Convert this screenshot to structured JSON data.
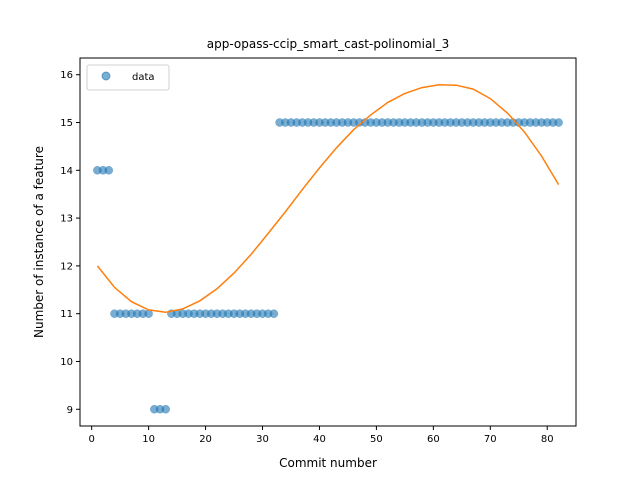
{
  "chart_data": {
    "type": "scatter",
    "title": "app-opass-ccip_smart_cast-polinomial_3",
    "xlabel": "Commit number",
    "ylabel": "Number of instance of a feature",
    "xlim": [
      -2.05,
      85.05
    ],
    "ylim": [
      8.65,
      16.35
    ],
    "xticks": [
      0,
      10,
      20,
      30,
      40,
      50,
      60,
      70,
      80
    ],
    "yticks": [
      9,
      10,
      11,
      12,
      13,
      14,
      15,
      16
    ],
    "grid": false,
    "legend": {
      "location": "upper left",
      "entries": [
        "data"
      ]
    },
    "series": [
      {
        "name": "data",
        "kind": "scatter",
        "color": "#1f77b4",
        "x": [
          1,
          2,
          3,
          4,
          5,
          6,
          7,
          8,
          9,
          10,
          11,
          12,
          13,
          14,
          15,
          16,
          17,
          18,
          19,
          20,
          21,
          22,
          23,
          24,
          25,
          26,
          27,
          28,
          29,
          30,
          31,
          32,
          33,
          34,
          35,
          36,
          37,
          38,
          39,
          40,
          41,
          42,
          43,
          44,
          45,
          46,
          47,
          48,
          49,
          50,
          51,
          52,
          53,
          54,
          55,
          56,
          57,
          58,
          59,
          60,
          61,
          62,
          63,
          64,
          65,
          66,
          67,
          68,
          69,
          70,
          71,
          72,
          73,
          74,
          75,
          76,
          77,
          78,
          79,
          80,
          81,
          82
        ],
        "y": [
          14,
          14,
          14,
          11,
          11,
          11,
          11,
          11,
          11,
          11,
          9,
          9,
          9,
          11,
          11,
          11,
          11,
          11,
          11,
          11,
          11,
          11,
          11,
          11,
          11,
          11,
          11,
          11,
          11,
          11,
          11,
          11,
          15,
          15,
          15,
          15,
          15,
          15,
          15,
          15,
          15,
          15,
          15,
          15,
          15,
          15,
          15,
          15,
          15,
          15,
          15,
          15,
          15,
          15,
          15,
          15,
          15,
          15,
          15,
          15,
          15,
          15,
          15,
          15,
          15,
          15,
          15,
          15,
          15,
          15,
          15,
          15,
          15,
          15,
          15,
          15,
          15,
          15,
          15,
          15,
          15,
          15
        ]
      },
      {
        "kind": "line",
        "color": "#ff7f0e",
        "x": [
          1,
          4,
          7,
          10,
          13,
          16,
          19,
          22,
          25,
          28,
          31,
          34,
          37,
          40,
          43,
          46,
          49,
          52,
          55,
          58,
          61,
          64,
          67,
          70,
          73,
          76,
          79,
          82
        ],
        "y": [
          12.0,
          11.55,
          11.25,
          11.08,
          11.03,
          11.1,
          11.27,
          11.52,
          11.85,
          12.24,
          12.68,
          13.13,
          13.6,
          14.05,
          14.47,
          14.85,
          15.16,
          15.42,
          15.61,
          15.73,
          15.79,
          15.78,
          15.7,
          15.5,
          15.2,
          14.8,
          14.3,
          13.7
        ]
      }
    ]
  }
}
